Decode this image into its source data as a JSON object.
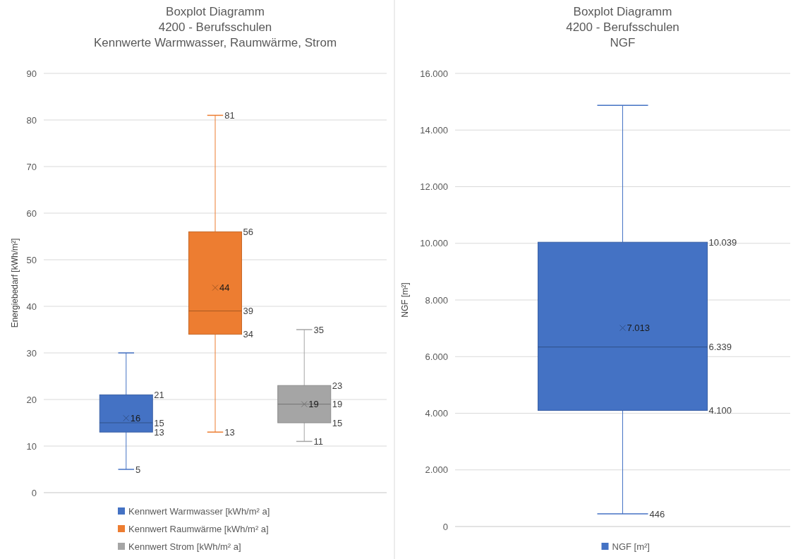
{
  "chart_data": [
    {
      "type": "box",
      "title": "Boxplot Diagramm\n4200 - Berufsschulen\nKennwerte Warmwasser, Raumwärme, Strom",
      "ylabel": "Energiebedarf [kWh/m²]",
      "categories": [
        null
      ],
      "ylim": [
        0,
        90
      ],
      "yticks": [
        0,
        10,
        20,
        30,
        40,
        50,
        60,
        70,
        80,
        90
      ],
      "grid": "y",
      "legend": "bottom",
      "annotations": [
        "5",
        "13",
        "15",
        "16",
        "21",
        "13",
        "34",
        "39",
        "44",
        "56",
        "81",
        "11",
        "15",
        "19",
        "19",
        "23",
        "35"
      ],
      "series": [
        {
          "name": "Kennwert Warmwasser [kWh/m² a]",
          "color": "#4472c4",
          "boxes": [
            {
              "low": 5,
              "q1": 13,
              "median": 15,
              "q3": 21,
              "high": 30,
              "mean": 16
            }
          ]
        },
        {
          "name": "Kennwert Raumwärme [kWh/m² a]",
          "color": "#ed7d31",
          "boxes": [
            {
              "low": 13,
              "q1": 34,
              "median": 39,
              "q3": 56,
              "high": 81,
              "mean": 44
            }
          ]
        },
        {
          "name": "Kennwert Strom [kWh/m² a]",
          "color": "#a5a5a5",
          "boxes": [
            {
              "low": 11,
              "q1": 15,
              "median": 19,
              "q3": 23,
              "high": 35,
              "mean": 19
            }
          ]
        }
      ]
    },
    {
      "type": "box",
      "title": "Boxplot Diagramm\n4200 - Berufsschulen\nNGF",
      "ylabel": "NGF [m²]",
      "categories": [
        null
      ],
      "ylim": [
        0,
        16000
      ],
      "yticks": [
        0,
        {
          "value": 2000,
          "label": "2.000"
        },
        {
          "value": 4000,
          "label": "4.000"
        },
        {
          "value": 6000,
          "label": "6.000"
        },
        {
          "value": 8000,
          "label": "8.000"
        },
        {
          "value": 10000,
          "label": "10.000"
        },
        {
          "value": 12000,
          "label": "12.000"
        },
        {
          "value": 14000,
          "label": "14.000"
        },
        {
          "value": 16000,
          "label": "16.000"
        }
      ],
      "grid": "y",
      "legend": "bottom",
      "annotations": [
        "446",
        "4.100",
        "6.339",
        "7.013",
        "10.039"
      ],
      "series": [
        {
          "name": "NGF [m²]",
          "color": "#4472c4",
          "boxes": [
            {
              "low": 446,
              "q1": 4100,
              "median": 6339,
              "q3": 10039,
              "high": 14875,
              "mean": 7013
            }
          ]
        }
      ]
    }
  ]
}
